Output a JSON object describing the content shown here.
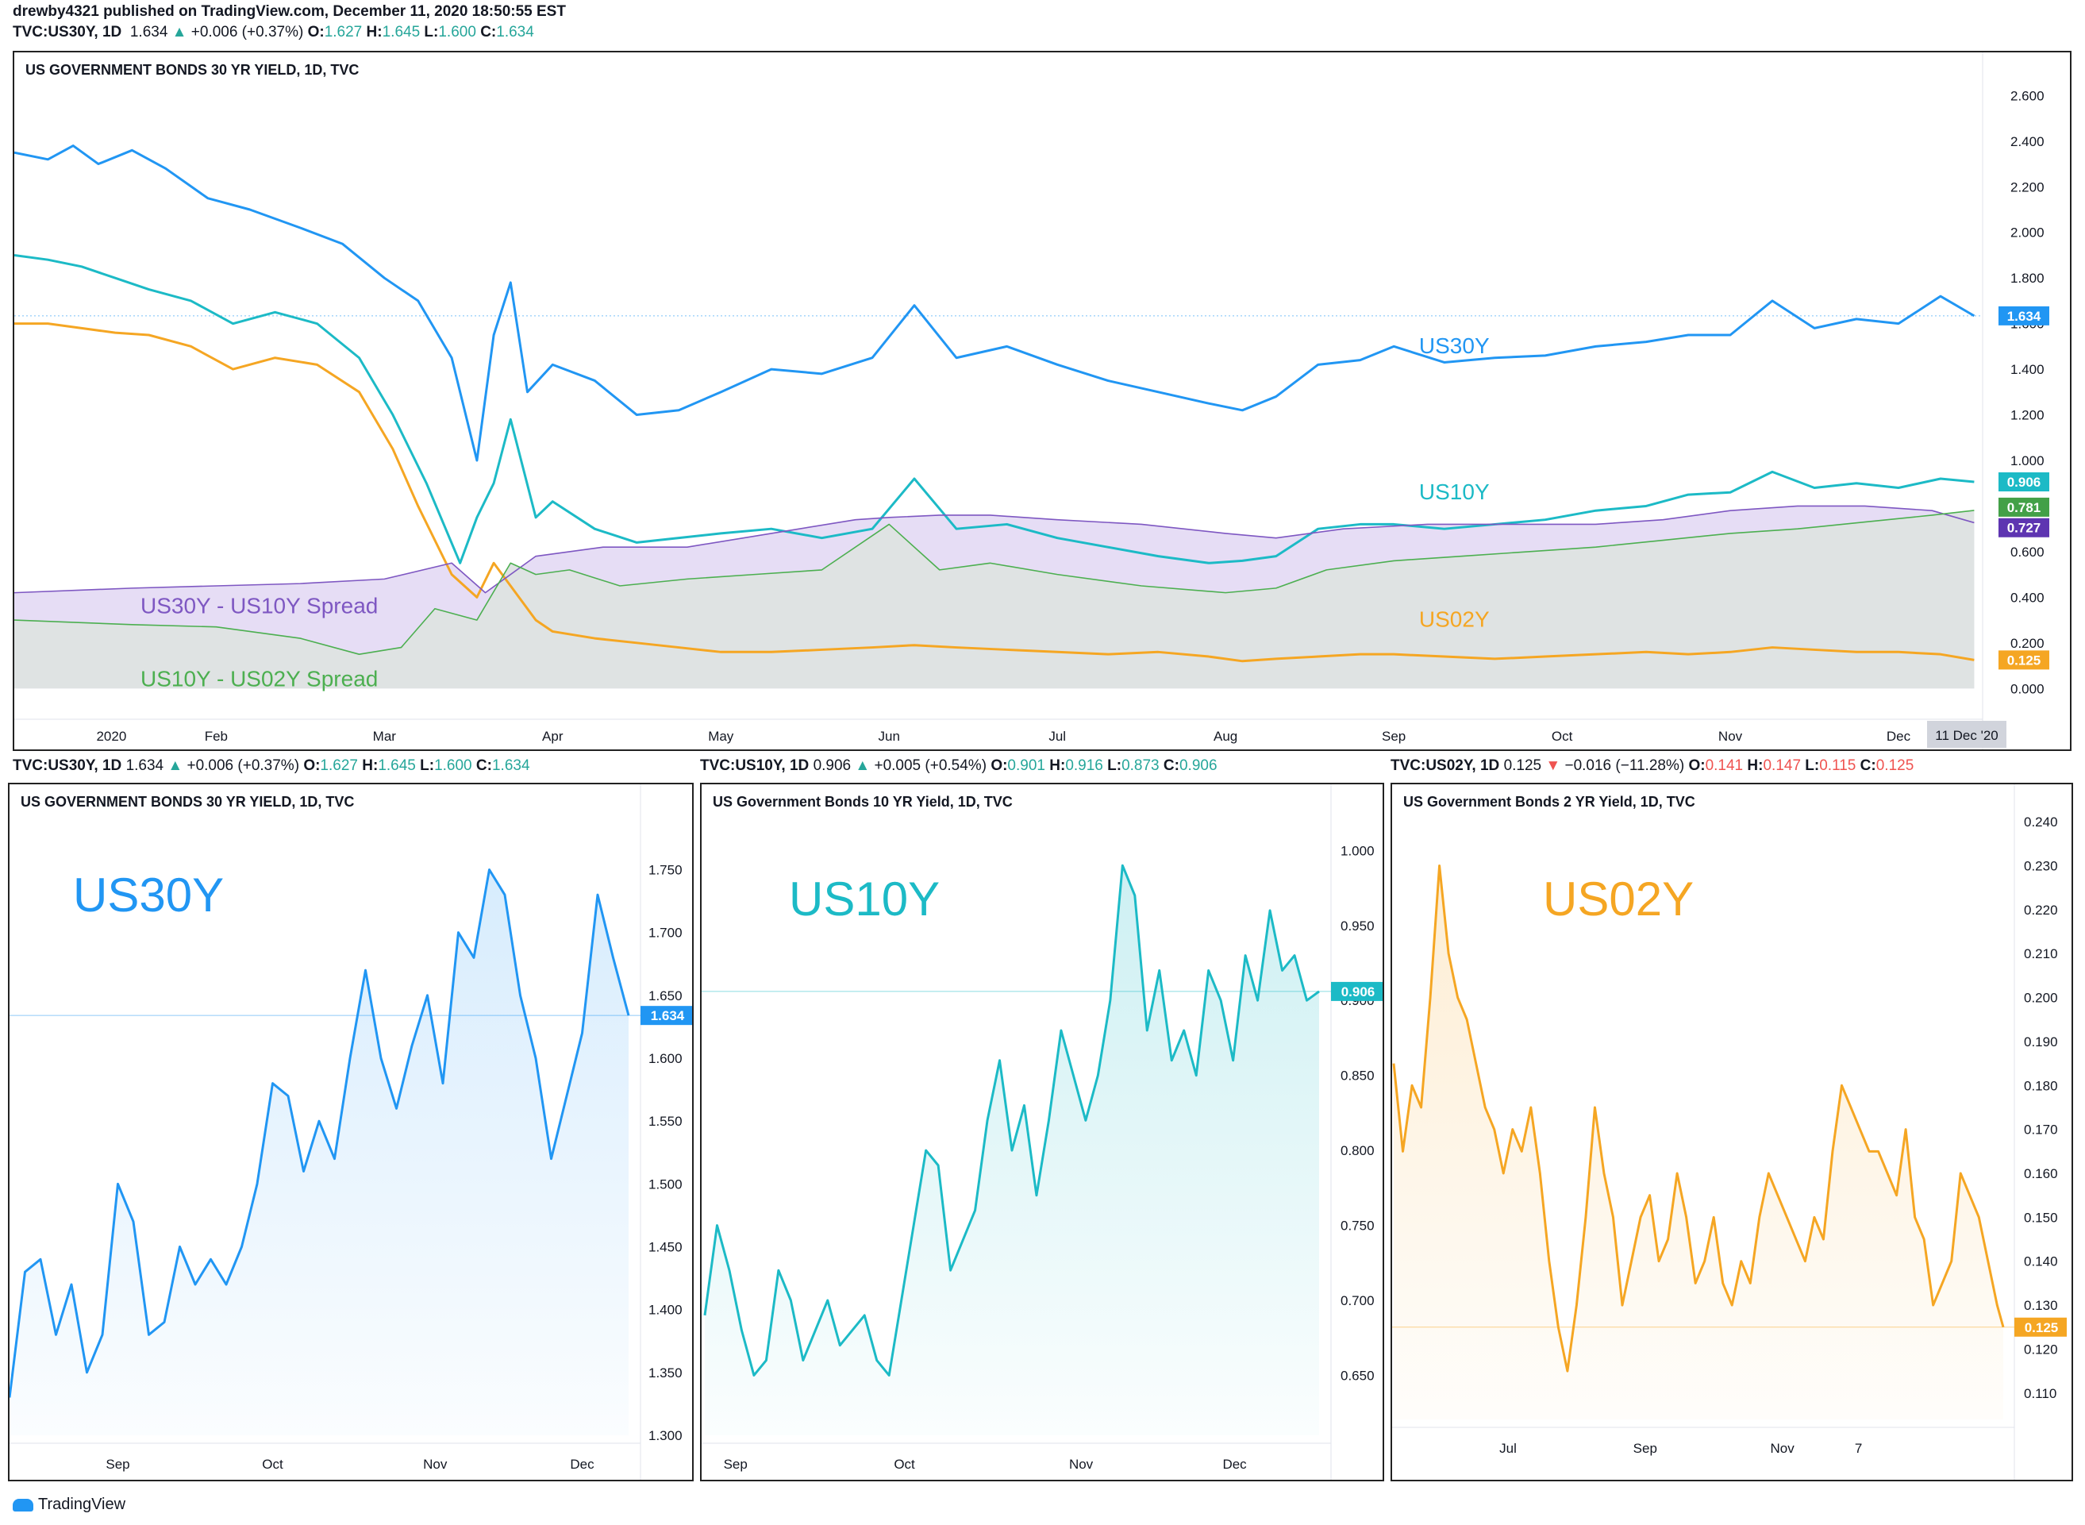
{
  "header": {
    "published": "drewby4321 published on TradingView.com, December 11, 2020 18:50:55 EST",
    "main_legend": {
      "symbol": "TVC:US30Y, 1D",
      "last": "1.634",
      "arrow": "▲",
      "change": "+0.006 (+0.37%)",
      "o_label": "O:",
      "o": "1.627",
      "h_label": "H:",
      "h": "1.645",
      "l_label": "L:",
      "l": "1.600",
      "c_label": "C:",
      "c": "1.634"
    }
  },
  "footer": {
    "brand": "TradingView"
  },
  "colors": {
    "us30y": "#2196f3",
    "us10y": "#1cbac6",
    "us02y": "#f5a623",
    "spread30_10": "#7e57c2",
    "spread10_02": "#4caf50",
    "spread30_10_fill": "#e6ddf5",
    "spread10_02_fill": "#dfe3e3"
  },
  "chart_data": [
    {
      "type": "line",
      "title": "US GOVERNMENT BONDS 30 YR YIELD, 1D, TVC",
      "ylim": [
        -0.1,
        2.65
      ],
      "y_ticks": [
        "2.600",
        "2.400",
        "2.200",
        "2.000",
        "1.800",
        "1.600",
        "1.400",
        "1.200",
        "1.000",
        "0.800",
        "0.600",
        "0.400",
        "0.200",
        "0.000"
      ],
      "x_ticks": [
        "2020",
        "Feb",
        "Mar",
        "Apr",
        "May",
        "Jun",
        "Jul",
        "Aug",
        "Sep",
        "Oct",
        "Nov",
        "Dec"
      ],
      "x_ticks_pos": [
        0,
        1,
        2,
        3,
        4,
        5,
        6,
        7,
        8,
        9,
        10,
        11
      ],
      "cursor_label": "11 Dec '20",
      "annotations": [
        {
          "text": "US30Y",
          "x": 8.15,
          "y": 1.47,
          "color": "#2196f3"
        },
        {
          "text": "US10Y",
          "x": 8.15,
          "y": 0.83,
          "color": "#1cbac6"
        },
        {
          "text": "US02Y",
          "x": 8.15,
          "y": 0.27,
          "color": "#f5a623"
        },
        {
          "text": "US30Y - US10Y Spread",
          "x": 0.55,
          "y": 0.33,
          "color": "#7e57c2"
        },
        {
          "text": "US10Y - US02Y Spread",
          "x": 0.55,
          "y": 0.01,
          "color": "#4caf50"
        }
      ],
      "last_labels": [
        {
          "text": "1.634",
          "y": 1.634,
          "color": "#2196f3"
        },
        {
          "text": "0.906",
          "y": 0.906,
          "color": "#1cbac6"
        },
        {
          "text": "0.781",
          "y": 0.795,
          "color": "#43a047"
        },
        {
          "text": "0.727",
          "y": 0.705,
          "color": "#5e35b1"
        },
        {
          "text": "0.125",
          "y": 0.125,
          "color": "#f5a623"
        }
      ],
      "series": [
        {
          "name": "US30Y",
          "x": [
            -0.2,
            0.0,
            0.15,
            0.3,
            0.5,
            0.7,
            0.95,
            1.2,
            1.5,
            1.75,
            2.0,
            2.2,
            2.4,
            2.55,
            2.65,
            2.75,
            2.85,
            3.0,
            3.25,
            3.5,
            3.75,
            4.0,
            4.3,
            4.6,
            4.9,
            5.15,
            5.4,
            5.7,
            6.0,
            6.3,
            6.6,
            6.9,
            7.1,
            7.3,
            7.55,
            7.8,
            8.0,
            8.3,
            8.6,
            8.9,
            9.2,
            9.5,
            9.75,
            10.0,
            10.25,
            10.5,
            10.75,
            11.0,
            11.25,
            11.45
          ],
          "y": [
            2.35,
            2.32,
            2.38,
            2.3,
            2.36,
            2.28,
            2.15,
            2.1,
            2.02,
            1.95,
            1.8,
            1.7,
            1.45,
            1.0,
            1.55,
            1.78,
            1.3,
            1.42,
            1.35,
            1.2,
            1.22,
            1.3,
            1.4,
            1.38,
            1.45,
            1.68,
            1.45,
            1.5,
            1.42,
            1.35,
            1.3,
            1.25,
            1.22,
            1.28,
            1.42,
            1.44,
            1.5,
            1.43,
            1.45,
            1.46,
            1.5,
            1.52,
            1.55,
            1.55,
            1.7,
            1.58,
            1.62,
            1.6,
            1.72,
            1.634
          ]
        },
        {
          "name": "US10Y",
          "x": [
            -0.2,
            0.0,
            0.2,
            0.4,
            0.6,
            0.85,
            1.1,
            1.35,
            1.6,
            1.85,
            2.05,
            2.25,
            2.45,
            2.55,
            2.65,
            2.75,
            2.9,
            3.0,
            3.25,
            3.5,
            3.75,
            4.0,
            4.3,
            4.6,
            4.9,
            5.15,
            5.4,
            5.7,
            6.0,
            6.3,
            6.6,
            6.9,
            7.1,
            7.3,
            7.55,
            7.8,
            8.0,
            8.3,
            8.6,
            8.9,
            9.2,
            9.5,
            9.75,
            10.0,
            10.25,
            10.5,
            10.75,
            11.0,
            11.25,
            11.45
          ],
          "y": [
            1.9,
            1.88,
            1.85,
            1.8,
            1.75,
            1.7,
            1.6,
            1.65,
            1.6,
            1.45,
            1.2,
            0.9,
            0.55,
            0.75,
            0.9,
            1.18,
            0.75,
            0.82,
            0.7,
            0.64,
            0.66,
            0.68,
            0.7,
            0.66,
            0.7,
            0.92,
            0.7,
            0.72,
            0.66,
            0.62,
            0.58,
            0.55,
            0.56,
            0.58,
            0.7,
            0.72,
            0.72,
            0.7,
            0.72,
            0.74,
            0.78,
            0.8,
            0.85,
            0.86,
            0.95,
            0.88,
            0.9,
            0.88,
            0.92,
            0.906
          ]
        },
        {
          "name": "US02Y",
          "x": [
            -0.2,
            0.0,
            0.2,
            0.4,
            0.6,
            0.85,
            1.1,
            1.35,
            1.6,
            1.85,
            2.05,
            2.2,
            2.4,
            2.55,
            2.65,
            2.75,
            2.9,
            3.0,
            3.25,
            3.5,
            3.75,
            4.0,
            4.3,
            4.6,
            4.9,
            5.15,
            5.4,
            5.7,
            6.0,
            6.3,
            6.6,
            6.9,
            7.1,
            7.3,
            7.55,
            7.8,
            8.0,
            8.3,
            8.6,
            8.9,
            9.2,
            9.5,
            9.75,
            10.0,
            10.25,
            10.5,
            10.75,
            11.0,
            11.25,
            11.45
          ],
          "y": [
            1.6,
            1.6,
            1.58,
            1.56,
            1.55,
            1.5,
            1.4,
            1.45,
            1.42,
            1.3,
            1.05,
            0.8,
            0.5,
            0.4,
            0.55,
            0.45,
            0.3,
            0.25,
            0.22,
            0.2,
            0.18,
            0.16,
            0.16,
            0.17,
            0.18,
            0.19,
            0.18,
            0.17,
            0.16,
            0.15,
            0.16,
            0.14,
            0.12,
            0.13,
            0.14,
            0.15,
            0.15,
            0.14,
            0.13,
            0.14,
            0.15,
            0.16,
            0.15,
            0.16,
            0.18,
            0.17,
            0.16,
            0.16,
            0.15,
            0.125
          ]
        },
        {
          "name": "US30Y - US10Y Spread",
          "x": [
            -0.2,
            0.5,
            1.0,
            1.5,
            2.0,
            2.4,
            2.6,
            2.9,
            3.3,
            3.8,
            4.3,
            4.8,
            5.0,
            5.3,
            5.6,
            6.0,
            6.5,
            7.0,
            7.3,
            7.7,
            8.2,
            8.7,
            9.2,
            9.6,
            10.0,
            10.4,
            10.8,
            11.2,
            11.45
          ],
          "y": [
            0.42,
            0.44,
            0.45,
            0.46,
            0.48,
            0.55,
            0.42,
            0.58,
            0.62,
            0.62,
            0.68,
            0.74,
            0.75,
            0.76,
            0.76,
            0.74,
            0.72,
            0.68,
            0.66,
            0.7,
            0.72,
            0.72,
            0.72,
            0.74,
            0.78,
            0.8,
            0.8,
            0.78,
            0.727
          ]
        },
        {
          "name": "US10Y - US02Y Spread",
          "x": [
            -0.2,
            0.5,
            1.0,
            1.5,
            1.85,
            2.1,
            2.3,
            2.55,
            2.75,
            2.9,
            3.1,
            3.4,
            3.8,
            4.2,
            4.6,
            5.0,
            5.3,
            5.6,
            6.0,
            6.5,
            7.0,
            7.3,
            7.6,
            8.0,
            8.4,
            8.8,
            9.2,
            9.6,
            10.0,
            10.4,
            10.8,
            11.2,
            11.45
          ],
          "y": [
            0.3,
            0.28,
            0.27,
            0.22,
            0.15,
            0.18,
            0.35,
            0.3,
            0.55,
            0.5,
            0.52,
            0.45,
            0.48,
            0.5,
            0.52,
            0.72,
            0.52,
            0.55,
            0.5,
            0.45,
            0.42,
            0.44,
            0.52,
            0.56,
            0.58,
            0.6,
            0.62,
            0.65,
            0.68,
            0.7,
            0.73,
            0.76,
            0.781
          ]
        }
      ]
    },
    {
      "type": "area",
      "title": "US GOVERNMENT BONDS 30 YR YIELD, 1D, TVC",
      "legend": {
        "symbol": "TVC:US30Y, 1D",
        "last": "1.634",
        "arrow": "▲",
        "change": "+0.006 (+0.37%)",
        "o_label": "O:",
        "o": "1.627",
        "h_label": "H:",
        "h": "1.645",
        "l_label": "L:",
        "l": "1.600",
        "c_label": "C:",
        "c": "1.634"
      },
      "big_label": "US30Y",
      "ylim": [
        1.3,
        1.78
      ],
      "y_ticks": [
        "1.750",
        "1.700",
        "1.650",
        "1.600",
        "1.550",
        "1.500",
        "1.450",
        "1.400",
        "1.350",
        "1.300"
      ],
      "x_ticks": [
        "Sep",
        "Oct",
        "Nov",
        "Dec"
      ],
      "x_ticks_pos": [
        0.7,
        1.7,
        2.75,
        3.7
      ],
      "last_value": 1.634,
      "last_label": "1.634",
      "x": [
        0.0,
        0.1,
        0.2,
        0.3,
        0.4,
        0.5,
        0.6,
        0.7,
        0.8,
        0.9,
        1.0,
        1.1,
        1.2,
        1.3,
        1.4,
        1.5,
        1.6,
        1.7,
        1.8,
        1.9,
        2.0,
        2.1,
        2.2,
        2.3,
        2.4,
        2.5,
        2.6,
        2.7,
        2.8,
        2.9,
        3.0,
        3.1,
        3.2,
        3.3,
        3.4,
        3.5,
        3.6,
        3.7,
        3.8,
        3.9,
        4.0
      ],
      "y": [
        1.33,
        1.43,
        1.44,
        1.38,
        1.42,
        1.35,
        1.38,
        1.5,
        1.47,
        1.38,
        1.39,
        1.45,
        1.42,
        1.44,
        1.42,
        1.45,
        1.5,
        1.58,
        1.57,
        1.51,
        1.55,
        1.52,
        1.6,
        1.67,
        1.6,
        1.56,
        1.61,
        1.65,
        1.58,
        1.7,
        1.68,
        1.75,
        1.73,
        1.65,
        1.6,
        1.52,
        1.57,
        1.62,
        1.73,
        1.68,
        1.634
      ]
    },
    {
      "type": "area",
      "title": "US Government Bonds 10 YR Yield, 1D, TVC",
      "legend": {
        "symbol": "TVC:US10Y, 1D",
        "last": "0.906",
        "arrow": "▲",
        "change": "+0.005 (+0.54%)",
        "o_label": "O:",
        "o": "0.901",
        "h_label": "H:",
        "h": "0.916",
        "l_label": "L:",
        "l": "0.873",
        "c_label": "C:",
        "c": "0.906"
      },
      "big_label": "US10Y",
      "ylim": [
        0.61,
        1.015
      ],
      "y_ticks": [
        "1.000",
        "0.950",
        "0.900",
        "0.850",
        "0.800",
        "0.750",
        "0.700",
        "0.650"
      ],
      "x_ticks": [
        "Sep",
        "Oct",
        "Nov",
        "Dec"
      ],
      "x_ticks_pos": [
        0.2,
        1.3,
        2.45,
        3.45
      ],
      "last_value": 0.906,
      "last_label": "0.906",
      "x": [
        0.0,
        0.08,
        0.16,
        0.24,
        0.32,
        0.4,
        0.48,
        0.56,
        0.64,
        0.72,
        0.8,
        0.88,
        0.96,
        1.04,
        1.12,
        1.2,
        1.28,
        1.36,
        1.44,
        1.52,
        1.6,
        1.68,
        1.76,
        1.84,
        1.92,
        2.0,
        2.08,
        2.16,
        2.24,
        2.32,
        2.4,
        2.48,
        2.56,
        2.64,
        2.72,
        2.8,
        2.88,
        2.96,
        3.04,
        3.12,
        3.2,
        3.28,
        3.36,
        3.44,
        3.52,
        3.6,
        3.68,
        3.76,
        3.84,
        3.92,
        4.0
      ],
      "y": [
        0.69,
        0.75,
        0.72,
        0.68,
        0.65,
        0.66,
        0.72,
        0.7,
        0.66,
        0.68,
        0.7,
        0.67,
        0.68,
        0.69,
        0.66,
        0.65,
        0.7,
        0.75,
        0.8,
        0.79,
        0.72,
        0.74,
        0.76,
        0.82,
        0.86,
        0.8,
        0.83,
        0.77,
        0.82,
        0.88,
        0.85,
        0.82,
        0.85,
        0.9,
        0.99,
        0.97,
        0.88,
        0.92,
        0.86,
        0.88,
        0.85,
        0.92,
        0.9,
        0.86,
        0.93,
        0.9,
        0.96,
        0.92,
        0.93,
        0.9,
        0.906
      ]
    },
    {
      "type": "area",
      "title": "US Government Bonds 2 YR Yield, 1D, TVC",
      "legend": {
        "symbol": "TVC:US02Y, 1D",
        "last": "0.125",
        "arrow": "▼",
        "change": "−0.016 (−11.28%)",
        "o_label": "O:",
        "o": "0.141",
        "h_label": "H:",
        "h": "0.147",
        "l_label": "L:",
        "l": "0.115",
        "c_label": "C:",
        "c": "0.125"
      },
      "big_label": "US02Y",
      "ylim": [
        0.104,
        0.244
      ],
      "y_ticks": [
        "0.240",
        "0.230",
        "0.220",
        "0.210",
        "0.200",
        "0.190",
        "0.180",
        "0.170",
        "0.160",
        "0.150",
        "0.140",
        "0.130",
        "0.120",
        "0.110"
      ],
      "x_ticks": [
        "Jul",
        "Sep",
        "Nov",
        "7"
      ],
      "x_ticks_pos": [
        0.75,
        1.65,
        2.55,
        3.05
      ],
      "last_value": 0.125,
      "last_label": "0.125",
      "x": [
        0.0,
        0.06,
        0.12,
        0.18,
        0.24,
        0.3,
        0.36,
        0.42,
        0.48,
        0.54,
        0.6,
        0.66,
        0.72,
        0.78,
        0.84,
        0.9,
        0.96,
        1.02,
        1.08,
        1.14,
        1.2,
        1.26,
        1.32,
        1.38,
        1.44,
        1.5,
        1.56,
        1.62,
        1.68,
        1.74,
        1.8,
        1.86,
        1.92,
        1.98,
        2.04,
        2.1,
        2.16,
        2.22,
        2.28,
        2.34,
        2.4,
        2.46,
        2.52,
        2.58,
        2.64,
        2.7,
        2.76,
        2.82,
        2.88,
        2.94,
        3.0,
        3.06,
        3.12,
        3.18,
        3.24,
        3.3,
        3.36,
        3.42,
        3.48,
        3.54,
        3.6,
        3.66,
        3.72,
        3.78,
        3.84,
        3.9,
        3.96,
        4.0
      ],
      "y": [
        0.185,
        0.165,
        0.18,
        0.175,
        0.2,
        0.23,
        0.21,
        0.2,
        0.195,
        0.185,
        0.175,
        0.17,
        0.16,
        0.17,
        0.165,
        0.175,
        0.16,
        0.14,
        0.125,
        0.115,
        0.13,
        0.15,
        0.175,
        0.16,
        0.15,
        0.13,
        0.14,
        0.15,
        0.155,
        0.14,
        0.145,
        0.16,
        0.15,
        0.135,
        0.14,
        0.15,
        0.135,
        0.13,
        0.14,
        0.135,
        0.15,
        0.16,
        0.155,
        0.15,
        0.145,
        0.14,
        0.15,
        0.145,
        0.165,
        0.18,
        0.175,
        0.17,
        0.165,
        0.165,
        0.16,
        0.155,
        0.17,
        0.15,
        0.145,
        0.13,
        0.135,
        0.14,
        0.16,
        0.155,
        0.15,
        0.14,
        0.13,
        0.125
      ]
    }
  ]
}
